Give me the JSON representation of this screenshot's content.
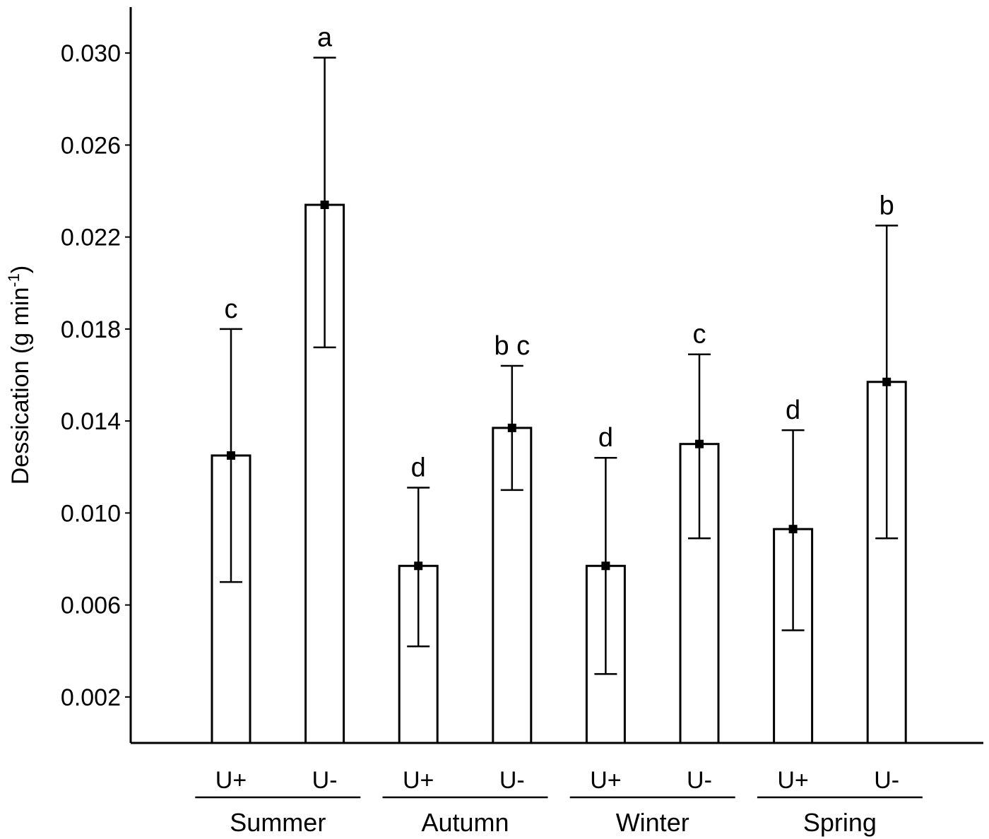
{
  "chart_data": {
    "type": "bar",
    "ylabel": "Dessication (g min",
    "ylabel_sup": "-1",
    "ylabel_close": ")",
    "ylim": [
      0,
      0.032
    ],
    "yticks": [
      "0.002",
      "0.006",
      "0.010",
      "0.014",
      "0.018",
      "0.022",
      "0.026",
      "0.030"
    ],
    "grid": false,
    "groups": [
      "Summer",
      "Autumn",
      "Winter",
      "Spring"
    ],
    "categories": [
      "U+",
      "U-",
      "U+",
      "U-",
      "U+",
      "U-",
      "U+",
      "U-"
    ],
    "values": [
      0.0125,
      0.0234,
      0.0077,
      0.0137,
      0.0077,
      0.013,
      0.0093,
      0.0157
    ],
    "error_upper": [
      0.018,
      0.0298,
      0.0111,
      0.0164,
      0.0124,
      0.0169,
      0.0136,
      0.0225
    ],
    "error_lower": [
      0.007,
      0.0172,
      0.0042,
      0.011,
      0.003,
      0.0089,
      0.0049,
      0.0089
    ],
    "annotations": [
      "c",
      "a",
      "d",
      "b c",
      "d",
      "c",
      "d",
      "b"
    ],
    "bar_color": "#ffffff",
    "edge_color": "#000000"
  }
}
